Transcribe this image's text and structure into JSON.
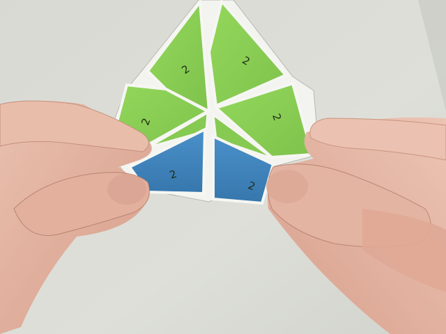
{
  "photo": {
    "subject": "hexaflexagon-photo",
    "colors": {
      "background": "#dcdcd6",
      "green_face": "#8cd257",
      "blue_face": "#3f86bf",
      "paper_edge": "#f4f4f0",
      "skin": "#e6b8a6"
    },
    "face_labels": [
      {
        "id": "top-left",
        "text": "2"
      },
      {
        "id": "top-right",
        "text": "2"
      },
      {
        "id": "mid-left",
        "text": "2"
      },
      {
        "id": "mid-right",
        "text": "2"
      },
      {
        "id": "blue-left",
        "text": "2"
      },
      {
        "id": "blue-right",
        "text": "2"
      }
    ]
  }
}
